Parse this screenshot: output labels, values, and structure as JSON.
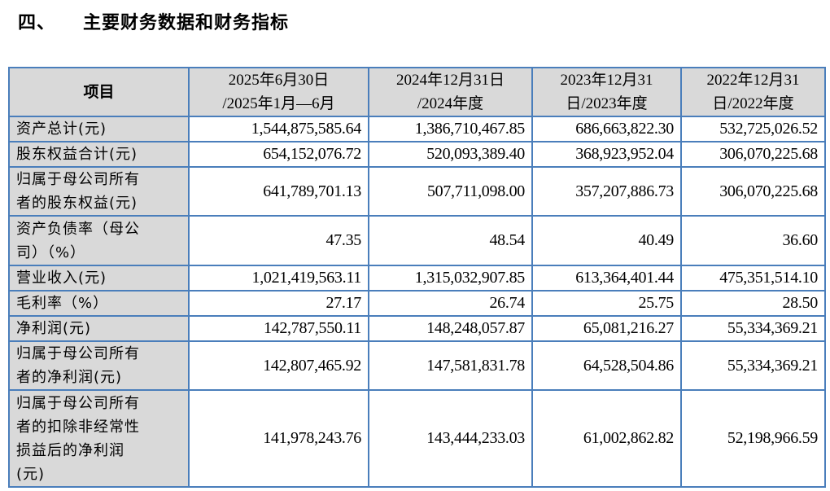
{
  "heading": {
    "number": "四、",
    "title": "主要财务数据和财务指标"
  },
  "table": {
    "headers": [
      "项目",
      "2025年6月30日\n/2025年1月—6月",
      "2024年12月31日\n/2024年度",
      "2023年12月31\n日/2023年度",
      "2022年12月31\n日/2022年度"
    ],
    "rows": [
      {
        "label": "资产总计(元)",
        "values": [
          "1,544,875,585.64",
          "1,386,710,467.85",
          "686,663,822.30",
          "532,725,026.52"
        ]
      },
      {
        "label": "股东权益合计(元)",
        "values": [
          "654,152,076.72",
          "520,093,389.40",
          "368,923,952.04",
          "306,070,225.68"
        ]
      },
      {
        "label": "归属于母公司所有\n者的股东权益(元)",
        "values": [
          "641,789,701.13",
          "507,711,098.00",
          "357,207,886.73",
          "306,070,225.68"
        ]
      },
      {
        "label": "资产负债率（母公\n司）（%）",
        "values": [
          "47.35",
          "48.54",
          "40.49",
          "36.60"
        ]
      },
      {
        "label": "营业收入(元)",
        "values": [
          "1,021,419,563.11",
          "1,315,032,907.85",
          "613,364,401.44",
          "475,351,514.10"
        ]
      },
      {
        "label": "毛利率（%）",
        "values": [
          "27.17",
          "26.74",
          "25.75",
          "28.50"
        ]
      },
      {
        "label": "净利润(元)",
        "values": [
          "142,787,550.11",
          "148,248,057.87",
          "65,081,216.27",
          "55,334,369.21"
        ]
      },
      {
        "label": "归属于母公司所有\n者的净利润(元)",
        "values": [
          "142,807,465.92",
          "147,581,831.78",
          "64,528,504.86",
          "55,334,369.21"
        ]
      },
      {
        "label": "归属于母公司所有\n者的扣除非经常性\n损益后的净利润\n(元)",
        "values": [
          "141,978,243.76",
          "143,444,233.03",
          "61,002,862.82",
          "52,198,966.59"
        ]
      }
    ]
  },
  "colors": {
    "border": "#4a7ebb",
    "label_bg": "#d9d9d9"
  }
}
